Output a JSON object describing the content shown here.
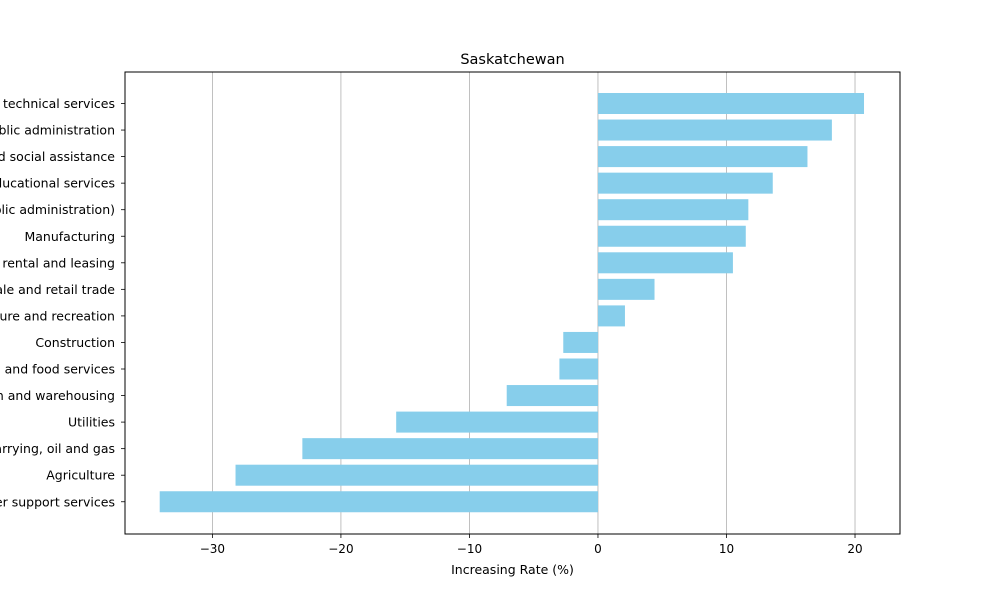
{
  "chart_data": {
    "type": "bar",
    "orientation": "horizontal",
    "title": "Saskatchewan",
    "xlabel": "Increasing Rate (%)",
    "ylabel": "",
    "xlim": [
      -36.8,
      23.5
    ],
    "xticks": [
      -30,
      -20,
      -10,
      0,
      10,
      20
    ],
    "xtick_labels": [
      "−30",
      "−20",
      "−10",
      "0",
      "10",
      "20"
    ],
    "grid": "x",
    "bar_color": "#87ceeb",
    "categories": [
      "Professional, scientific and technical services",
      "Public administration",
      "Health care and social assistance",
      "Educational services",
      "Other services (except public administration)",
      "Manufacturing",
      "Finance, insurance, real estate, rental and leasing",
      "Wholesale and retail trade",
      "Information, culture and recreation",
      "Construction",
      "Accommodation and food services",
      "Transportation and warehousing",
      "Utilities",
      "Forestry, fishing, mining, quarrying, oil and gas",
      "Agriculture",
      "Business, building and other support services"
    ],
    "values": [
      20.7,
      18.2,
      16.3,
      13.6,
      11.7,
      11.5,
      10.5,
      4.4,
      2.1,
      -2.7,
      -3.0,
      -7.1,
      -15.7,
      -23.0,
      -28.2,
      -34.1
    ]
  }
}
